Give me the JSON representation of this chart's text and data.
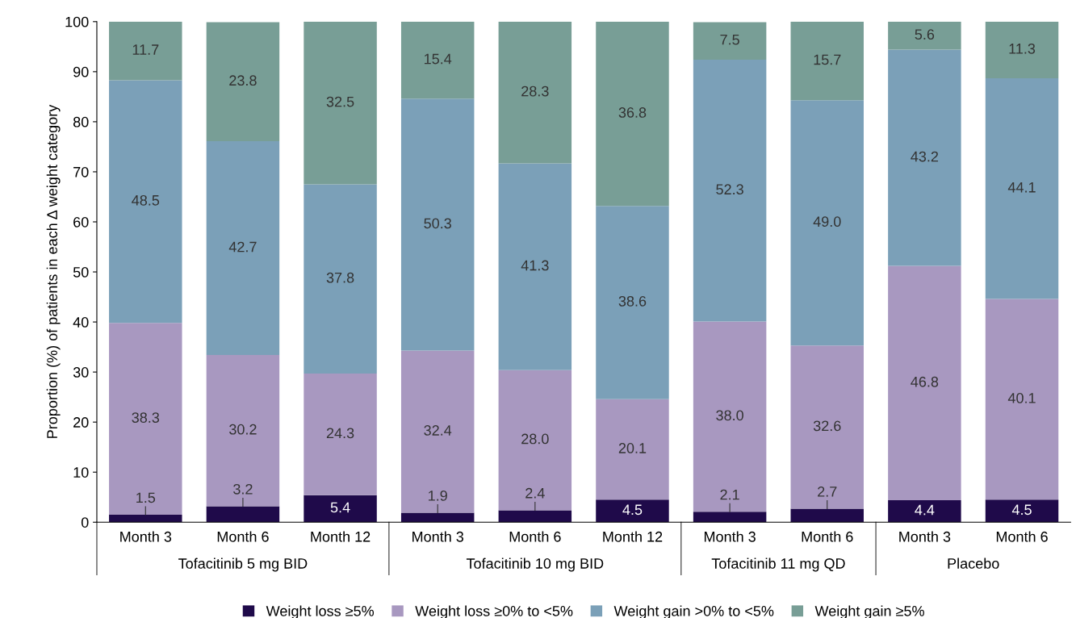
{
  "chart_data": {
    "type": "bar",
    "stacked": true,
    "ylabel": "Proportion (%) of patients in each Δ weight category",
    "categories": [
      "Month 3",
      "Month 6",
      "Month 12",
      "Month 3",
      "Month 6",
      "Month 12",
      "Month 3",
      "Month 6",
      "Month 3",
      "Month 6"
    ],
    "annotations": [
      "Tofacitinib 5 mg BID",
      "Tofacitinib 10 mg BID",
      "Tofacitinib 11 mg QD",
      "Placebo"
    ],
    "series": [
      {
        "name": "Weight loss ≥5%",
        "color": "#1f0a4a",
        "values": [
          1.5,
          3.2,
          5.4,
          1.9,
          2.4,
          4.5,
          2.1,
          2.7,
          4.4,
          4.5
        ],
        "value_labels": [
          "1.5",
          "3.2",
          "5.4",
          "1.9",
          "2.4",
          "4.5",
          "2.1",
          "2.7",
          "4.4",
          "4.5"
        ]
      },
      {
        "name": "Weight loss ≥0% to <5%",
        "color": "#a898c0",
        "values": [
          38.3,
          30.2,
          24.3,
          32.4,
          28.0,
          20.1,
          38.0,
          32.6,
          46.8,
          40.1
        ],
        "value_labels": [
          "38.3",
          "30.2",
          "24.3",
          "32.4",
          "28.0",
          "20.1",
          "38.0",
          "32.6",
          "46.8",
          "40.1"
        ]
      },
      {
        "name": "Weight gain >0% to <5%",
        "color": "#7ba0b8",
        "values": [
          48.5,
          42.7,
          37.8,
          50.3,
          41.3,
          38.6,
          52.3,
          49.0,
          43.2,
          44.1
        ],
        "value_labels": [
          "48.5",
          "42.7",
          "37.8",
          "50.3",
          "41.3",
          "38.6",
          "52.3",
          "49.0",
          "43.2",
          "44.1"
        ]
      },
      {
        "name": "Weight gain ≥5%",
        "color": "#789e96",
        "values": [
          11.7,
          23.8,
          32.5,
          15.4,
          28.3,
          36.8,
          7.5,
          15.7,
          5.6,
          11.3
        ],
        "value_labels": [
          "11.7",
          "23.8",
          "32.5",
          "15.4",
          "28.3",
          "36.8",
          "7.5",
          "15.7",
          "5.6",
          "11.3"
        ]
      }
    ],
    "ylim": [
      0,
      100
    ],
    "yticks": [
      0,
      10,
      20,
      30,
      40,
      50,
      60,
      70,
      80,
      90,
      100
    ],
    "grid": false,
    "legend": "bottom"
  }
}
